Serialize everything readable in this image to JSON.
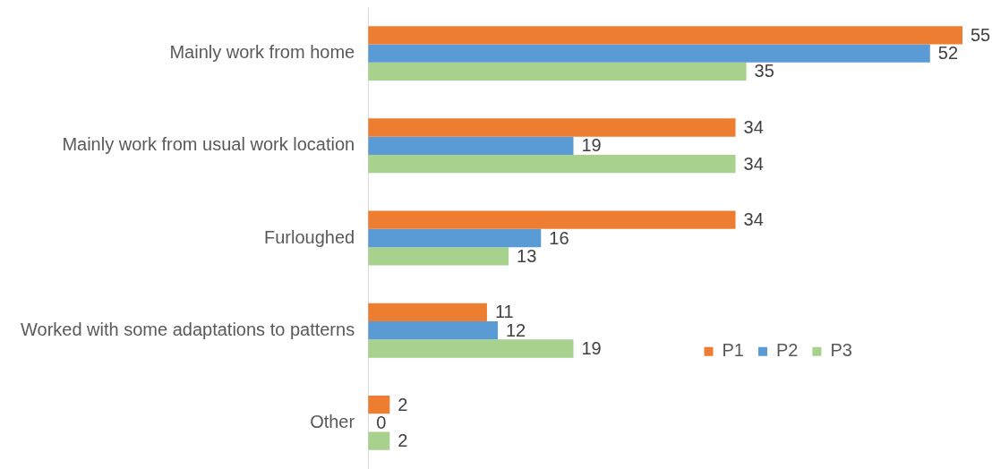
{
  "chart_data": {
    "type": "bar",
    "orientation": "horizontal",
    "tick_labels": "y",
    "data_labels": true,
    "legend": "right",
    "categories": [
      "Mainly work from home",
      "Mainly work from usual work location",
      "Furloughed",
      "Worked with some adaptations to patterns",
      "Other"
    ],
    "series": [
      {
        "name": "P1",
        "color": "#ed7d31",
        "values": [
          55,
          34,
          34,
          11,
          2
        ]
      },
      {
        "name": "P2",
        "color": "#5b9bd5",
        "values": [
          52,
          19,
          16,
          12,
          0
        ]
      },
      {
        "name": "P3",
        "color": "#a9d18e",
        "values": [
          35,
          34,
          13,
          19,
          2
        ]
      }
    ]
  }
}
